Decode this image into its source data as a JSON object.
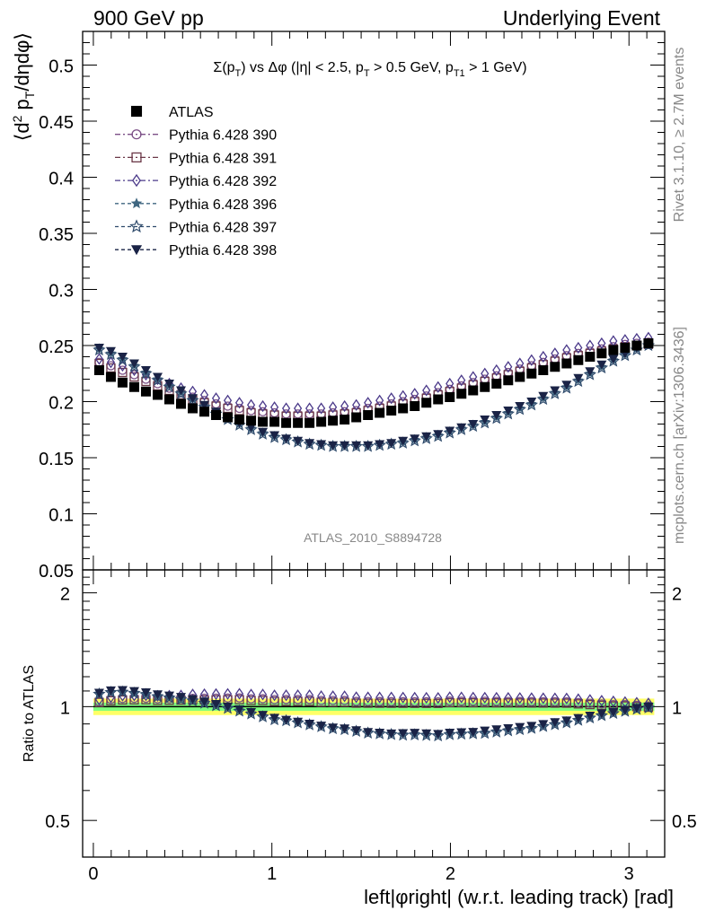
{
  "header": {
    "left": "900 GeV pp",
    "right": "Underlying Event"
  },
  "side": {
    "rivet": "Rivet 3.1.10, ≥ 2.7M events",
    "mcplots": "mcplots.cern.ch [arXiv:1306.3436]"
  },
  "plot_title": "Σ(p_T) vs Δφ (|η| < 2.5, p_T > 0.5 GeV, p_T1 > 1 GeV)",
  "watermark": "ATLAS_2010_S8894728",
  "colors": {
    "atlas": "#000000",
    "p390": "#7b4f86",
    "p391": "#6b3848",
    "p392": "#4b3a8a",
    "p396": "#3f6680",
    "p397": "#2e4a6b",
    "p398": "#1a2346",
    "band_inner": "#7fff7f",
    "band_outer": "#ffff66"
  },
  "chart_data": [
    {
      "type": "scatter",
      "panel": "main",
      "ylabel": "⟨d² p_T/dηdφ⟩",
      "xlabel": "left|φright| (w.r.t. leading track) [rad]",
      "xlim": [
        -0.06,
        3.2
      ],
      "ylim": [
        0.05,
        0.53
      ],
      "yticks": [
        "0.05",
        "0.1",
        "0.15",
        "0.2",
        "0.25",
        "0.3",
        "0.35",
        "0.4",
        "0.45",
        "0.5"
      ],
      "legend_position": "top-left",
      "x": [
        0.0327,
        0.0982,
        0.1636,
        0.2291,
        0.2945,
        0.36,
        0.4254,
        0.4909,
        0.5563,
        0.6218,
        0.6872,
        0.7527,
        0.8181,
        0.8836,
        0.949,
        1.0145,
        1.0799,
        1.1454,
        1.2108,
        1.2763,
        1.3417,
        1.4072,
        1.4726,
        1.5381,
        1.6035,
        1.669,
        1.7344,
        1.7999,
        1.8653,
        1.9308,
        1.9962,
        2.0617,
        2.1271,
        2.1926,
        2.258,
        2.3235,
        2.3889,
        2.4544,
        2.5198,
        2.5853,
        2.6507,
        2.7162,
        2.7816,
        2.8471,
        2.9125,
        2.978,
        3.0434,
        3.1089
      ],
      "series": [
        {
          "name": "ATLAS",
          "marker": "square-filled",
          "values": [
            0.228,
            0.222,
            0.217,
            0.213,
            0.209,
            0.206,
            0.202,
            0.198,
            0.194,
            0.191,
            0.188,
            0.186,
            0.184,
            0.183,
            0.182,
            0.182,
            0.181,
            0.181,
            0.181,
            0.182,
            0.183,
            0.184,
            0.186,
            0.188,
            0.19,
            0.192,
            0.194,
            0.196,
            0.199,
            0.202,
            0.204,
            0.207,
            0.21,
            0.213,
            0.216,
            0.219,
            0.222,
            0.225,
            0.228,
            0.231,
            0.234,
            0.237,
            0.24,
            0.243,
            0.246,
            0.248,
            0.25,
            0.252
          ]
        },
        {
          "name": "Pythia 6.428 390",
          "marker": "circle-open",
          "values": [
            0.235,
            0.232,
            0.228,
            0.224,
            0.22,
            0.216,
            0.212,
            0.208,
            0.204,
            0.201,
            0.198,
            0.196,
            0.194,
            0.192,
            0.191,
            0.19,
            0.189,
            0.189,
            0.189,
            0.189,
            0.19,
            0.191,
            0.192,
            0.194,
            0.196,
            0.198,
            0.2,
            0.202,
            0.205,
            0.208,
            0.211,
            0.214,
            0.217,
            0.22,
            0.223,
            0.226,
            0.229,
            0.232,
            0.235,
            0.238,
            0.241,
            0.243,
            0.245,
            0.247,
            0.249,
            0.251,
            0.252,
            0.253
          ]
        },
        {
          "name": "Pythia 6.428 391",
          "marker": "square-open",
          "values": [
            0.234,
            0.23,
            0.226,
            0.222,
            0.218,
            0.214,
            0.21,
            0.206,
            0.202,
            0.199,
            0.196,
            0.194,
            0.192,
            0.19,
            0.189,
            0.188,
            0.187,
            0.187,
            0.187,
            0.187,
            0.188,
            0.189,
            0.19,
            0.192,
            0.194,
            0.196,
            0.198,
            0.2,
            0.203,
            0.206,
            0.209,
            0.212,
            0.215,
            0.218,
            0.221,
            0.224,
            0.227,
            0.23,
            0.233,
            0.236,
            0.239,
            0.241,
            0.243,
            0.245,
            0.247,
            0.249,
            0.25,
            0.251
          ]
        },
        {
          "name": "Pythia 6.428 392",
          "marker": "diamond-open",
          "values": [
            0.238,
            0.235,
            0.232,
            0.228,
            0.224,
            0.22,
            0.216,
            0.212,
            0.209,
            0.206,
            0.203,
            0.201,
            0.199,
            0.197,
            0.196,
            0.195,
            0.194,
            0.194,
            0.194,
            0.194,
            0.195,
            0.196,
            0.197,
            0.199,
            0.201,
            0.203,
            0.205,
            0.207,
            0.21,
            0.213,
            0.216,
            0.219,
            0.222,
            0.225,
            0.228,
            0.231,
            0.234,
            0.237,
            0.24,
            0.243,
            0.246,
            0.248,
            0.25,
            0.252,
            0.254,
            0.255,
            0.256,
            0.257
          ]
        },
        {
          "name": "Pythia 6.428 396",
          "marker": "star-filled",
          "values": [
            0.247,
            0.243,
            0.238,
            0.232,
            0.226,
            0.22,
            0.214,
            0.208,
            0.202,
            0.196,
            0.19,
            0.185,
            0.18,
            0.176,
            0.172,
            0.169,
            0.167,
            0.165,
            0.163,
            0.162,
            0.161,
            0.161,
            0.161,
            0.161,
            0.162,
            0.163,
            0.164,
            0.166,
            0.168,
            0.17,
            0.173,
            0.176,
            0.179,
            0.182,
            0.186,
            0.19,
            0.194,
            0.198,
            0.203,
            0.208,
            0.213,
            0.219,
            0.225,
            0.231,
            0.237,
            0.242,
            0.247,
            0.251
          ]
        },
        {
          "name": "Pythia 6.428 397",
          "marker": "star-open",
          "values": [
            0.246,
            0.242,
            0.237,
            0.231,
            0.225,
            0.219,
            0.213,
            0.207,
            0.201,
            0.195,
            0.189,
            0.184,
            0.179,
            0.175,
            0.171,
            0.168,
            0.166,
            0.164,
            0.162,
            0.161,
            0.16,
            0.16,
            0.16,
            0.16,
            0.161,
            0.162,
            0.163,
            0.165,
            0.167,
            0.169,
            0.172,
            0.175,
            0.178,
            0.181,
            0.185,
            0.189,
            0.193,
            0.197,
            0.202,
            0.207,
            0.212,
            0.218,
            0.224,
            0.23,
            0.236,
            0.241,
            0.246,
            0.25
          ]
        },
        {
          "name": "Pythia 6.428 398",
          "marker": "triangle-down-filled",
          "values": [
            0.248,
            0.245,
            0.24,
            0.234,
            0.228,
            0.222,
            0.216,
            0.21,
            0.203,
            0.197,
            0.191,
            0.186,
            0.181,
            0.177,
            0.173,
            0.17,
            0.167,
            0.165,
            0.163,
            0.162,
            0.161,
            0.161,
            0.161,
            0.161,
            0.162,
            0.163,
            0.165,
            0.167,
            0.169,
            0.171,
            0.174,
            0.177,
            0.18,
            0.184,
            0.188,
            0.192,
            0.196,
            0.2,
            0.205,
            0.21,
            0.215,
            0.221,
            0.227,
            0.233,
            0.238,
            0.243,
            0.248,
            0.252
          ]
        }
      ]
    },
    {
      "type": "scatter",
      "panel": "ratio",
      "ylabel": "Ratio to ATLAS",
      "xlabel": "left|φright| (w.r.t. leading track) [rad]",
      "xlim": [
        -0.06,
        3.2
      ],
      "ylim": [
        0.4,
        2.3
      ],
      "yscale": "log",
      "yticks": [
        "0.5",
        "1",
        "2"
      ],
      "xticks": [
        "0",
        "1",
        "2",
        "3"
      ],
      "band_outer": [
        0.95,
        1.05
      ],
      "band_inner": [
        0.975,
        1.025
      ],
      "reference_line": 1.0
    }
  ]
}
